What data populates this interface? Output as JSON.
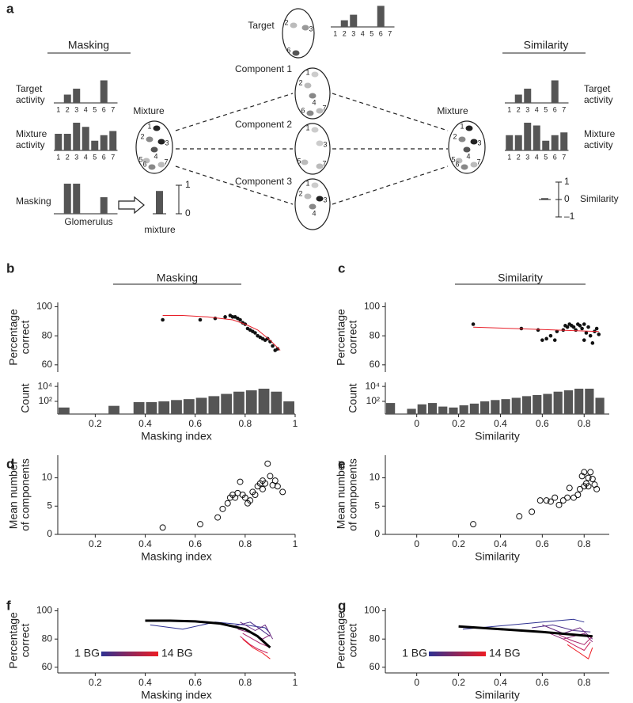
{
  "diagram": {
    "panel": "a",
    "categories": [
      "1",
      "2",
      "3",
      "4",
      "5",
      "6",
      "7"
    ],
    "bar_color": "#555555",
    "target": {
      "title": "Target",
      "glomeruli": [
        {
          "label": "2",
          "color": "#bbbbbb"
        },
        {
          "label": "3",
          "color": "#999999"
        },
        {
          "label": "6",
          "color": "#555555"
        }
      ],
      "values": [
        0,
        0.3,
        0.55,
        0,
        0,
        0.95,
        0
      ]
    },
    "components": [
      {
        "title": "Component 1",
        "glomeruli": [
          {
            "label": "1",
            "color": "#cccccc"
          },
          {
            "label": "2",
            "color": "#bbbbbb"
          },
          {
            "label": "4",
            "color": "#888888"
          },
          {
            "label": "6",
            "color": "#888888"
          },
          {
            "label": "7",
            "color": "#bbbbbb"
          }
        ]
      },
      {
        "title": "Component 2",
        "glomeruli": [
          {
            "label": "1",
            "color": "#cccccc"
          },
          {
            "label": "3",
            "color": "#cccccc"
          },
          {
            "label": "5",
            "color": "#bbbbbb"
          },
          {
            "label": "7",
            "color": "#bbbbbb"
          }
        ]
      },
      {
        "title": "Component 3",
        "glomeruli": [
          {
            "label": "1",
            "color": "#cccccc"
          },
          {
            "label": "2",
            "color": "#bbbbbb"
          },
          {
            "label": "3",
            "color": "#222222"
          },
          {
            "label": "4",
            "color": "#888888"
          }
        ]
      }
    ],
    "masking": {
      "title": "Masking",
      "target_label": [
        "Target",
        "activity"
      ],
      "target_values": [
        0,
        0.35,
        0.6,
        0,
        0,
        0.95,
        0
      ],
      "mixture_label": [
        "Mixture",
        "activity"
      ],
      "mixture_values": [
        0.6,
        0.6,
        1,
        0.85,
        0.35,
        0.55,
        0.7
      ],
      "masking_label": "Masking",
      "masking_values": [
        0,
        1,
        1,
        0,
        0,
        0.55,
        0
      ],
      "glomerulus_label": "Glomerulus",
      "mixture_title": "Mixture",
      "mixture_glomeruli": [
        {
          "label": "1",
          "color": "#222222"
        },
        {
          "label": "2",
          "color": "#888888"
        },
        {
          "label": "3",
          "color": "#222222"
        },
        {
          "label": "4",
          "color": "#555555"
        },
        {
          "label": "5",
          "color": "#bbbbbb"
        },
        {
          "label": "6",
          "color": "#888888"
        },
        {
          "label": "7",
          "color": "#bbbbbb"
        }
      ],
      "mixture_value": 0.8,
      "mixture_value_label": "mixture",
      "scale_ticks": [
        1,
        0
      ]
    },
    "similarity": {
      "title": "Similarity",
      "target_label": [
        "Target",
        "activity"
      ],
      "target_values": [
        0,
        0.35,
        0.6,
        0,
        0,
        0.95,
        0
      ],
      "mixture_label": [
        "Mixture",
        "activity"
      ],
      "mixture_values": [
        0.55,
        0.55,
        1,
        0.9,
        0.35,
        0.55,
        0.65
      ],
      "mixture_title": "Mixture",
      "mixture_glomeruli": [
        {
          "label": "1",
          "color": "#222222"
        },
        {
          "label": "2",
          "color": "#888888"
        },
        {
          "label": "3",
          "color": "#222222"
        },
        {
          "label": "4",
          "color": "#555555"
        },
        {
          "label": "5",
          "color": "#bbbbbb"
        },
        {
          "label": "6",
          "color": "#888888"
        },
        {
          "label": "7",
          "color": "#bbbbbb"
        }
      ],
      "similarity_value": 0.08,
      "similarity_label": "Similarity",
      "scale_ticks": [
        1,
        0,
        {
          "value": -1,
          "label": "–1"
        }
      ]
    }
  },
  "chart_data": [
    {
      "type": "scatter",
      "panel": "b",
      "header": "Masking",
      "ylabel": [
        "Percentage",
        "correct"
      ],
      "xlim": [
        0.05,
        1
      ],
      "ylim": [
        55,
        103
      ],
      "yticks": [
        60,
        80,
        100
      ],
      "series": [
        {
          "style": "dots",
          "color": "#111111",
          "x": [
            0.47,
            0.62,
            0.68,
            0.72,
            0.74,
            0.75,
            0.76,
            0.77,
            0.78,
            0.79,
            0.8,
            0.81,
            0.82,
            0.83,
            0.84,
            0.85,
            0.86,
            0.87,
            0.88,
            0.89,
            0.9,
            0.91,
            0.92,
            0.93
          ],
          "values": [
            91,
            91,
            92,
            93,
            94,
            93,
            93,
            92,
            91,
            89,
            88,
            85,
            84,
            83,
            82,
            80,
            79,
            78,
            77,
            78,
            76,
            73,
            70,
            71
          ]
        },
        {
          "style": "line",
          "color": "#e8202a",
          "width": 1,
          "x": [
            0.47,
            0.55,
            0.65,
            0.7,
            0.75,
            0.8,
            0.85,
            0.9,
            0.94
          ],
          "values": [
            94,
            94,
            93,
            92,
            91,
            88,
            84,
            77,
            70
          ]
        }
      ]
    },
    {
      "type": "histogram",
      "ylabel": [
        "Count"
      ],
      "xlabel": "Masking index",
      "color": "#555555",
      "yscale": "log",
      "xlim": [
        0.05,
        1
      ],
      "ylim": [
        2,
        35000
      ],
      "yticks": [
        {
          "value": 100,
          "label": "10²"
        },
        {
          "value": 10000,
          "label": "10⁴"
        }
      ],
      "xticks": [
        0.2,
        0.4,
        0.6,
        0.8,
        1
      ],
      "bins": [
        0.05,
        0.1,
        0.15,
        0.2,
        0.25,
        0.3,
        0.35,
        0.4,
        0.45,
        0.5,
        0.55,
        0.6,
        0.65,
        0.7,
        0.75,
        0.8,
        0.85,
        0.9,
        0.95,
        1
      ],
      "values": [
        15,
        0,
        0,
        0,
        25,
        0,
        80,
        80,
        100,
        150,
        200,
        300,
        500,
        1000,
        2000,
        3000,
        5000,
        2000,
        100
      ]
    },
    {
      "type": "scatter",
      "panel": "c",
      "header": "Similarity",
      "ylabel": [
        "Percentage",
        "correct"
      ],
      "xlim": [
        -0.15,
        0.92
      ],
      "ylim": [
        55,
        103
      ],
      "yticks": [
        60,
        80,
        100
      ],
      "series": [
        {
          "style": "dots",
          "color": "#111111",
          "x": [
            0.27,
            0.5,
            0.58,
            0.6,
            0.62,
            0.64,
            0.66,
            0.67,
            0.7,
            0.71,
            0.72,
            0.73,
            0.74,
            0.75,
            0.76,
            0.77,
            0.78,
            0.79,
            0.8,
            0.8,
            0.81,
            0.82,
            0.83,
            0.84,
            0.85,
            0.86,
            0.87
          ],
          "values": [
            88,
            85,
            84,
            77,
            78,
            80,
            77,
            83,
            84,
            87,
            86,
            88,
            87,
            86,
            84,
            88,
            87,
            85,
            88,
            77,
            82,
            86,
            80,
            75,
            83,
            85,
            81
          ]
        },
        {
          "style": "line",
          "color": "#e8202a",
          "width": 1,
          "x": [
            0.27,
            0.87
          ],
          "values": [
            86,
            83
          ]
        }
      ]
    },
    {
      "type": "histogram",
      "ylabel": [
        "Count"
      ],
      "xlabel": "Similarity",
      "color": "#555555",
      "yscale": "log",
      "xlim": [
        -0.15,
        0.92
      ],
      "ylim": [
        2,
        35000
      ],
      "yticks": [
        {
          "value": 100,
          "label": "10²"
        },
        {
          "value": 10000,
          "label": "10⁴"
        }
      ],
      "xticks": [
        0,
        0.2,
        0.4,
        0.6,
        0.8
      ],
      "bins": [
        -0.15,
        -0.1,
        -0.05,
        0,
        0.05,
        0.1,
        0.15,
        0.2,
        0.25,
        0.3,
        0.35,
        0.4,
        0.45,
        0.5,
        0.55,
        0.6,
        0.65,
        0.7,
        0.75,
        0.8,
        0.85,
        0.9
      ],
      "values": [
        60,
        0,
        10,
        40,
        60,
        20,
        15,
        30,
        50,
        100,
        150,
        200,
        300,
        500,
        700,
        1000,
        2000,
        3000,
        5000,
        5000,
        300
      ]
    },
    {
      "type": "scatter",
      "panel": "d",
      "ylabel": [
        "Mean number",
        "of components"
      ],
      "xlabel": "Masking index",
      "xlim": [
        0.05,
        1
      ],
      "ylim": [
        0,
        14
      ],
      "yticks": [
        0,
        5,
        10
      ],
      "xticks": [
        0.2,
        0.4,
        0.6,
        0.8,
        1
      ],
      "series": [
        {
          "style": "circles",
          "color": "#111111",
          "x": [
            0.47,
            0.62,
            0.69,
            0.71,
            0.73,
            0.74,
            0.75,
            0.76,
            0.77,
            0.78,
            0.79,
            0.8,
            0.81,
            0.82,
            0.83,
            0.84,
            0.85,
            0.86,
            0.87,
            0.87,
            0.88,
            0.89,
            0.9,
            0.91,
            0.92,
            0.93,
            0.95
          ],
          "values": [
            1.2,
            1.8,
            3,
            4.5,
            5.5,
            6.5,
            7,
            6.5,
            7.3,
            9.3,
            7,
            6.5,
            5.5,
            6,
            7.5,
            7,
            8.5,
            9,
            9.5,
            8,
            9,
            12.5,
            10.3,
            8.7,
            9.5,
            8.5,
            7.5
          ]
        }
      ]
    },
    {
      "type": "scatter",
      "panel": "e",
      "ylabel": [
        "Mean number",
        "of components"
      ],
      "xlabel": "Similarity",
      "xlim": [
        -0.15,
        0.92
      ],
      "ylim": [
        0,
        14
      ],
      "yticks": [
        0,
        5,
        10
      ],
      "xticks": [
        0,
        0.2,
        0.4,
        0.6,
        0.8
      ],
      "series": [
        {
          "style": "circles",
          "color": "#111111",
          "x": [
            0.27,
            0.49,
            0.55,
            0.59,
            0.62,
            0.64,
            0.66,
            0.68,
            0.7,
            0.72,
            0.73,
            0.75,
            0.77,
            0.78,
            0.79,
            0.8,
            0.8,
            0.81,
            0.82,
            0.82,
            0.83,
            0.84,
            0.85,
            0.86
          ],
          "values": [
            1.8,
            3.2,
            4,
            6,
            6,
            5.8,
            6.5,
            5.2,
            6,
            6.5,
            8.2,
            6.5,
            7,
            8,
            10.3,
            8.5,
            11,
            9,
            10,
            8.5,
            11,
            9.8,
            8.8,
            8
          ]
        }
      ]
    },
    {
      "type": "line",
      "panel": "f",
      "ylabel": [
        "Percentage",
        "correct"
      ],
      "xlabel": "Masking index",
      "xlim": [
        0.05,
        1
      ],
      "ylim": [
        56,
        102
      ],
      "yticks": [
        60,
        80,
        100
      ],
      "xticks": [
        0.2,
        0.4,
        0.6,
        0.8,
        1
      ],
      "colorbar": {
        "labels": [
          "1 BG",
          "14 BG"
        ],
        "colors": [
          "#2e3192",
          "#ed1c24"
        ]
      },
      "series": [
        {
          "style": "line",
          "color": "#2e3192",
          "width": 1,
          "x": [
            0.42,
            0.55,
            0.68,
            0.8,
            0.88,
            0.9
          ],
          "values": [
            90,
            87,
            92,
            90,
            88,
            84
          ]
        },
        {
          "style": "line",
          "color": "#4b2d8a",
          "width": 1,
          "x": [
            0.75,
            0.82,
            0.86,
            0.9
          ],
          "values": [
            89,
            92,
            87,
            82
          ]
        },
        {
          "style": "line",
          "color": "#6a2a80",
          "width": 1,
          "x": [
            0.78,
            0.84,
            0.88,
            0.91
          ],
          "values": [
            92,
            86,
            90,
            80
          ]
        },
        {
          "style": "line",
          "color": "#8a2676",
          "width": 1,
          "x": [
            0.77,
            0.83,
            0.87,
            0.9
          ],
          "values": [
            87,
            84,
            80,
            83
          ]
        },
        {
          "style": "line",
          "color": "#a8226b",
          "width": 1,
          "x": [
            0.79,
            0.83,
            0.86,
            0.9
          ],
          "values": [
            84,
            80,
            77,
            74
          ]
        },
        {
          "style": "line",
          "color": "#c81e5c",
          "width": 1,
          "x": [
            0.78,
            0.82,
            0.85,
            0.89
          ],
          "values": [
            82,
            76,
            73,
            70
          ]
        },
        {
          "style": "line",
          "color": "#ed1c24",
          "width": 1,
          "x": [
            0.79,
            0.83,
            0.87,
            0.9
          ],
          "values": [
            80,
            74,
            70,
            66
          ]
        },
        {
          "style": "line",
          "color": "#000000",
          "width": 3,
          "x": [
            0.4,
            0.5,
            0.6,
            0.7,
            0.8,
            0.85,
            0.9
          ],
          "values": [
            93,
            93,
            92.5,
            91,
            87,
            82,
            74
          ]
        }
      ]
    },
    {
      "type": "line",
      "panel": "g",
      "ylabel": [
        "Percentage",
        "correct"
      ],
      "xlabel": "Similarity",
      "xlim": [
        -0.15,
        0.92
      ],
      "ylim": [
        56,
        102
      ],
      "yticks": [
        60,
        80,
        100
      ],
      "xticks": [
        0,
        0.2,
        0.4,
        0.6,
        0.8
      ],
      "colorbar": {
        "labels": [
          "1 BG",
          "14 BG"
        ],
        "colors": [
          "#2e3192",
          "#ed1c24"
        ]
      },
      "series": [
        {
          "style": "line",
          "color": "#2e3192",
          "width": 1,
          "x": [
            0.22,
            0.45,
            0.6,
            0.75,
            0.8
          ],
          "values": [
            87,
            90,
            92,
            94,
            92
          ]
        },
        {
          "style": "line",
          "color": "#4b2d8a",
          "width": 1,
          "x": [
            0.55,
            0.65,
            0.75,
            0.83
          ],
          "values": [
            88,
            90,
            86,
            85
          ]
        },
        {
          "style": "line",
          "color": "#6a2a80",
          "width": 1,
          "x": [
            0.6,
            0.7,
            0.78,
            0.84
          ],
          "values": [
            90,
            84,
            88,
            80
          ]
        },
        {
          "style": "line",
          "color": "#8a2676",
          "width": 1,
          "x": [
            0.62,
            0.7,
            0.8,
            0.84
          ],
          "values": [
            85,
            80,
            84,
            78
          ]
        },
        {
          "style": "line",
          "color": "#a8226b",
          "width": 1,
          "x": [
            0.68,
            0.74,
            0.8,
            0.84
          ],
          "values": [
            83,
            79,
            76,
            82
          ]
        },
        {
          "style": "line",
          "color": "#c81e5c",
          "width": 1,
          "x": [
            0.7,
            0.76,
            0.8,
            0.83
          ],
          "values": [
            80,
            75,
            72,
            78
          ]
        },
        {
          "style": "line",
          "color": "#ed1c24",
          "width": 1,
          "x": [
            0.72,
            0.78,
            0.82,
            0.84
          ],
          "values": [
            76,
            70,
            66,
            74
          ]
        },
        {
          "style": "line",
          "color": "#000000",
          "width": 3,
          "x": [
            0.2,
            0.4,
            0.6,
            0.84
          ],
          "values": [
            89,
            87,
            85,
            82
          ]
        }
      ]
    }
  ]
}
